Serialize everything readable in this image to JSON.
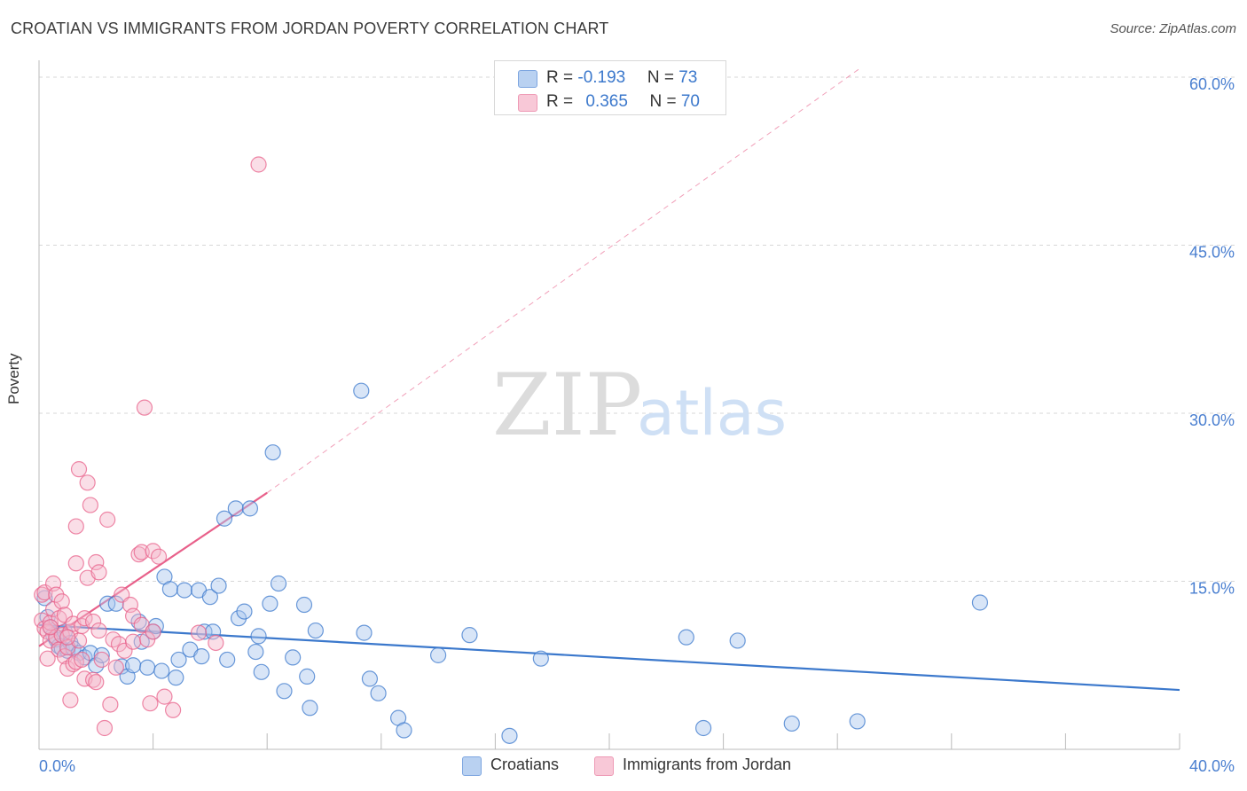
{
  "title": "CROATIAN VS IMMIGRANTS FROM JORDAN POVERTY CORRELATION CHART",
  "source": "Source: ZipAtlas.com",
  "watermark": {
    "zip": "ZIP",
    "atlas": "atlas"
  },
  "colors": {
    "blue": "#3b78cc",
    "blue_fill": "#a9c6ee",
    "pink": "#e8608a",
    "pink_fill": "#f5b6ca",
    "grid": "#d7d7d7",
    "axis_label": "#4a7fd0"
  },
  "legend": {
    "rows": [
      {
        "r_label": "R = ",
        "r_value": "-0.193",
        "n_label": "N = ",
        "n_value": "73"
      },
      {
        "r_label": "R = ",
        "r_value": "0.365",
        "n_label": "N = ",
        "n_value": "70"
      }
    ]
  },
  "bottom_legend": [
    {
      "label": "Croatians"
    },
    {
      "label": "Immigrants from Jordan"
    }
  ],
  "chart_data": {
    "type": "scatter",
    "title": "CROATIAN VS IMMIGRANTS FROM JORDAN POVERTY CORRELATION CHART",
    "xlabel": "",
    "ylabel": "Poverty",
    "xlim": [
      0,
      40
    ],
    "ylim": [
      0,
      61.5
    ],
    "x_tick_labels": [
      "0.0%",
      "40.0%"
    ],
    "y_tick_values": [
      15,
      30,
      45,
      60
    ],
    "y_tick_labels": [
      "15.0%",
      "30.0%",
      "45.0%",
      "60.0%"
    ],
    "grid": true,
    "series": [
      {
        "name": "Croatians",
        "color": "#3b78cc",
        "r": -0.193,
        "n": 73,
        "trend": {
          "x": [
            0,
            40
          ],
          "y": [
            11.1,
            5.3
          ],
          "dashed_extension": false
        },
        "points": [
          [
            0.2,
            13.5
          ],
          [
            0.3,
            11.8
          ],
          [
            0.4,
            10.9
          ],
          [
            0.5,
            10.2
          ],
          [
            0.6,
            9.8
          ],
          [
            0.7,
            9.2
          ],
          [
            0.8,
            9.0
          ],
          [
            0.9,
            10.5
          ],
          [
            1.0,
            8.8
          ],
          [
            1.1,
            9.5
          ],
          [
            1.2,
            9.0
          ],
          [
            1.4,
            8.6
          ],
          [
            1.6,
            8.2
          ],
          [
            1.8,
            8.6
          ],
          [
            2.0,
            7.5
          ],
          [
            2.2,
            8.4
          ],
          [
            2.4,
            13.0
          ],
          [
            2.7,
            13.0
          ],
          [
            2.9,
            7.4
          ],
          [
            3.1,
            6.5
          ],
          [
            3.3,
            7.5
          ],
          [
            3.5,
            11.4
          ],
          [
            3.6,
            9.6
          ],
          [
            3.8,
            7.3
          ],
          [
            4.0,
            10.5
          ],
          [
            4.1,
            11.0
          ],
          [
            4.3,
            7.0
          ],
          [
            4.4,
            15.4
          ],
          [
            4.6,
            14.3
          ],
          [
            4.8,
            6.4
          ],
          [
            4.9,
            8.0
          ],
          [
            5.1,
            14.2
          ],
          [
            5.3,
            8.9
          ],
          [
            5.6,
            14.2
          ],
          [
            5.7,
            8.3
          ],
          [
            5.8,
            10.5
          ],
          [
            6.0,
            13.6
          ],
          [
            6.1,
            10.5
          ],
          [
            6.3,
            14.6
          ],
          [
            6.5,
            20.6
          ],
          [
            6.6,
            8.0
          ],
          [
            6.9,
            21.5
          ],
          [
            7.0,
            11.7
          ],
          [
            7.2,
            12.3
          ],
          [
            7.4,
            21.5
          ],
          [
            7.6,
            8.7
          ],
          [
            7.7,
            10.1
          ],
          [
            7.8,
            6.9
          ],
          [
            8.1,
            13.0
          ],
          [
            8.2,
            26.5
          ],
          [
            8.4,
            14.8
          ],
          [
            8.6,
            5.2
          ],
          [
            8.9,
            8.2
          ],
          [
            9.3,
            12.9
          ],
          [
            9.4,
            6.5
          ],
          [
            9.5,
            3.7
          ],
          [
            9.7,
            10.6
          ],
          [
            11.3,
            32.0
          ],
          [
            11.4,
            10.4
          ],
          [
            11.6,
            6.3
          ],
          [
            11.9,
            5.0
          ],
          [
            12.6,
            2.8
          ],
          [
            12.8,
            1.7
          ],
          [
            14.0,
            8.4
          ],
          [
            15.1,
            10.2
          ],
          [
            16.5,
            1.2
          ],
          [
            17.6,
            8.1
          ],
          [
            22.7,
            10.0
          ],
          [
            23.3,
            1.9
          ],
          [
            24.5,
            9.7
          ],
          [
            26.4,
            2.3
          ],
          [
            28.7,
            2.5
          ],
          [
            33.0,
            13.1
          ]
        ]
      },
      {
        "name": "Immigrants from Jordan",
        "color": "#e8608a",
        "r": 0.365,
        "n": 70,
        "trend": {
          "x": [
            0,
            8
          ],
          "y": [
            9.2,
            22.9
          ],
          "dashed_extension": true,
          "extension_to": [
            28.8,
            60.8
          ]
        },
        "points": [
          [
            0.1,
            13.8
          ],
          [
            0.1,
            11.5
          ],
          [
            0.2,
            10.8
          ],
          [
            0.2,
            14.0
          ],
          [
            0.3,
            10.5
          ],
          [
            0.3,
            8.1
          ],
          [
            0.4,
            9.7
          ],
          [
            0.4,
            11.3
          ],
          [
            0.5,
            14.8
          ],
          [
            0.5,
            12.5
          ],
          [
            0.6,
            10.0
          ],
          [
            0.6,
            13.8
          ],
          [
            0.7,
            11.7
          ],
          [
            0.7,
            8.9
          ],
          [
            0.8,
            13.2
          ],
          [
            0.8,
            10.2
          ],
          [
            0.9,
            8.3
          ],
          [
            0.9,
            12.0
          ],
          [
            1.0,
            9.1
          ],
          [
            1.0,
            7.2
          ],
          [
            1.1,
            10.5
          ],
          [
            1.1,
            4.4
          ],
          [
            1.2,
            11.2
          ],
          [
            1.2,
            7.6
          ],
          [
            1.3,
            7.8
          ],
          [
            1.3,
            19.9
          ],
          [
            1.3,
            16.6
          ],
          [
            1.4,
            9.7
          ],
          [
            1.4,
            25.0
          ],
          [
            1.5,
            8.0
          ],
          [
            1.5,
            11.0
          ],
          [
            1.6,
            11.7
          ],
          [
            1.6,
            6.3
          ],
          [
            1.7,
            23.8
          ],
          [
            1.7,
            15.3
          ],
          [
            1.8,
            21.8
          ],
          [
            1.9,
            11.4
          ],
          [
            1.9,
            6.2
          ],
          [
            2.0,
            16.7
          ],
          [
            2.0,
            6.0
          ],
          [
            2.1,
            15.8
          ],
          [
            2.1,
            10.6
          ],
          [
            2.2,
            8.0
          ],
          [
            2.3,
            1.9
          ],
          [
            2.4,
            20.5
          ],
          [
            2.5,
            4.0
          ],
          [
            2.6,
            9.8
          ],
          [
            2.7,
            7.3
          ],
          [
            2.8,
            9.4
          ],
          [
            2.9,
            13.8
          ],
          [
            3.0,
            8.8
          ],
          [
            3.2,
            12.9
          ],
          [
            3.3,
            11.9
          ],
          [
            3.3,
            9.6
          ],
          [
            3.5,
            17.4
          ],
          [
            3.6,
            11.1
          ],
          [
            3.6,
            17.6
          ],
          [
            3.7,
            30.5
          ],
          [
            3.8,
            9.8
          ],
          [
            3.9,
            4.1
          ],
          [
            4.0,
            17.7
          ],
          [
            4.0,
            10.5
          ],
          [
            4.2,
            17.2
          ],
          [
            4.4,
            4.7
          ],
          [
            4.7,
            3.5
          ],
          [
            5.6,
            10.4
          ],
          [
            6.2,
            9.5
          ],
          [
            7.7,
            52.2
          ],
          [
            1.0,
            10.0
          ],
          [
            0.4,
            10.9
          ]
        ]
      }
    ]
  }
}
